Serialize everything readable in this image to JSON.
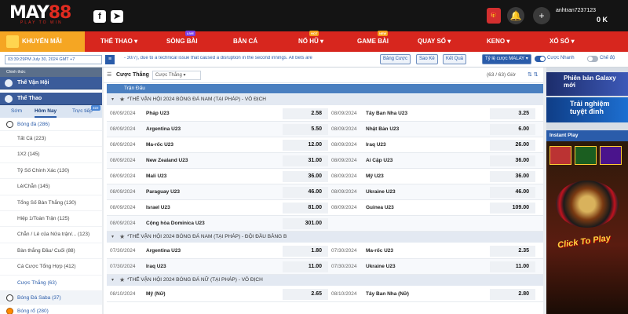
{
  "header": {
    "logo_main": "MAY",
    "logo_num": "88",
    "logo_tagline": "PLAY TO WIN",
    "username": "anhtran7237123",
    "balance": "0 K"
  },
  "nav": {
    "promo": "KHUYẾN MÃI",
    "items": [
      {
        "label": "THỂ THAO ▾",
        "badge": ""
      },
      {
        "label": "SÒNG BÀI",
        "badge": "LIVE"
      },
      {
        "label": "BẮN CÁ",
        "badge": ""
      },
      {
        "label": "NỔ HŨ ▾",
        "badge": "HOT"
      },
      {
        "label": "GAME BÀI",
        "badge": "NEW"
      },
      {
        "label": "QUAY SỐ ▾",
        "badge": ""
      },
      {
        "label": "KENO ▾",
        "badge": ""
      },
      {
        "label": "XỔ SỐ ▾",
        "badge": ""
      }
    ]
  },
  "subbar": {
    "datetime": "03:39:29PM July 30, 2024 GMT +7",
    "marquee": "- 30/7), due to a technical issue that caused a disruption in the second innings. All bets are",
    "btn_bet_list": "Bảng Cược",
    "btn_statement": "Sao Kê",
    "btn_results": "Kết Quả",
    "odds_type": "Tỷ lệ cược MALAY ▾",
    "quick_bet": "Cược Nhanh",
    "mode": "Chế độ"
  },
  "sidebar": {
    "top_row": "Chinh thức",
    "olympics": "Thế Vận Hội",
    "sports": "Thể Thao",
    "tabs": [
      "Sớm",
      "Hôm Nay",
      "Trực tiếp"
    ],
    "live_badge": "322",
    "football": "Bóng đá  (286)",
    "items": [
      "Tất Cả  (223)",
      "1X2  (145)",
      "Tỷ Số Chính Xác  (130)",
      "Lẻ/Chẵn  (145)",
      "Tổng Số Bàn Thắng  (130)",
      "Hiệp 1/Toàn Trận  (125)",
      "Chẵn / Lẻ của Nửa trận/...  (123)",
      "Bàn thắng Đầu/ Cuối  (88)",
      "Cá Cược Tổng Hợp  (412)",
      "Cược Thắng  (63)"
    ],
    "active_index": 9,
    "other": [
      "Bóng Đá Saba  (37)",
      "Bóng rổ  (280)"
    ]
  },
  "main": {
    "title": "Cược Thắng",
    "select": "Cược Thắng ▾",
    "count": "(63 / 63)  Giờ",
    "sort_icons": "⇅ ⇅",
    "col_header": "Trận Đấu"
  },
  "leagues": [
    {
      "name": "*THẾ VẬN HỘI 2024 BÓNG ĐÁ NAM (TẠI PHÁP) - VÔ ĐỊCH",
      "rows": [
        [
          "08/09/2024",
          "Pháp U23",
          "2.58",
          "08/09/2024",
          "Tây Ban Nha U23",
          "3.25"
        ],
        [
          "08/09/2024",
          "Argentina U23",
          "5.50",
          "08/09/2024",
          "Nhật Bản U23",
          "6.00"
        ],
        [
          "08/09/2024",
          "Ma-rốc U23",
          "12.00",
          "08/09/2024",
          "Iraq U23",
          "26.00"
        ],
        [
          "08/09/2024",
          "New Zealand U23",
          "31.00",
          "08/09/2024",
          "Ai Cập U23",
          "36.00"
        ],
        [
          "08/09/2024",
          "Mali U23",
          "36.00",
          "08/09/2024",
          "Mỹ U23",
          "36.00"
        ],
        [
          "08/09/2024",
          "Paraguay U23",
          "46.00",
          "08/09/2024",
          "Ukraine U23",
          "46.00"
        ],
        [
          "08/09/2024",
          "Israel U23",
          "81.00",
          "08/09/2024",
          "Guinea U23",
          "109.00"
        ],
        [
          "08/09/2024",
          "Cộng hòa Dominica U23",
          "301.00",
          "",
          "",
          ""
        ]
      ]
    },
    {
      "name": "*THẾ VẬN HỘI 2024 BÓNG ĐÁ NAM (TẠI PHÁP) - ĐỘI ĐẦU BẢNG B",
      "rows": [
        [
          "07/30/2024",
          "Argentina U23",
          "1.80",
          "07/30/2024",
          "Ma-rốc U23",
          "2.35"
        ],
        [
          "07/30/2024",
          "Iraq U23",
          "11.00",
          "07/30/2024",
          "Ukraine U23",
          "11.00"
        ]
      ]
    },
    {
      "name": "*THẾ VẬN HỘI 2024 BÓNG ĐÁ NỮ (TẠI PHÁP) - VÔ ĐỊCH",
      "rows": [
        [
          "08/10/2024",
          "Mỹ (Nữ)",
          "2.65",
          "08/10/2024",
          "Tây Ban Nha (Nữ)",
          "2.80"
        ]
      ]
    }
  ],
  "right": {
    "promo1": "Phiên bản Galaxy mới",
    "promo2": "Trải nghiệm tuyệt đỉnh",
    "instant_play": "Instant Play",
    "click_to_play": "Click To Play"
  },
  "colors": {
    "brand_red": "#d7261e",
    "header_bg": "#141414",
    "accent_blue": "#2a5caa",
    "promo_orange": "#f5a623"
  }
}
